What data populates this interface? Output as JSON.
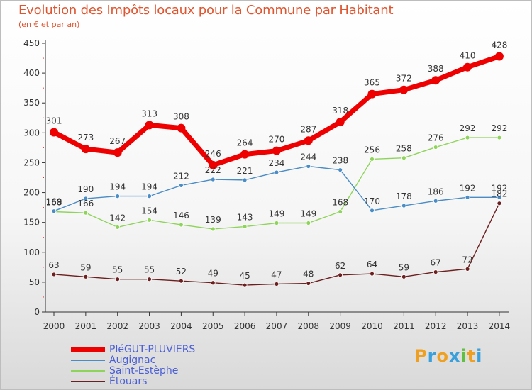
{
  "title": "Evolution des Impôts locaux pour la Commune par Habitant",
  "subtitle": "(en € et par an)",
  "logo": {
    "letters": [
      "P",
      "r",
      "o",
      "x",
      "i",
      "t",
      "i"
    ],
    "colors": [
      "#f0a020",
      "#3aa0dc",
      "#f0a020",
      "#3aa0dc",
      "#60c040",
      "#f0a020",
      "#3aa0dc"
    ]
  },
  "chart_data": {
    "type": "line",
    "title": "Evolution des Impôts locaux pour la Commune par Habitant",
    "subtitle": "(en € et par an)",
    "categories": [
      "2000",
      "2001",
      "2002",
      "2003",
      "2004",
      "2005",
      "2006",
      "2007",
      "2008",
      "2009",
      "2010",
      "2011",
      "2012",
      "2013",
      "2014"
    ],
    "ylim": [
      0,
      450
    ],
    "yticks": [
      0,
      50,
      100,
      150,
      200,
      250,
      300,
      350,
      400,
      450
    ],
    "grid": false,
    "legend_position": "bottom-left",
    "series": [
      {
        "name": "PléGUT-PLUVIERS",
        "color": "#ee0000",
        "values": [
          301,
          273,
          267,
          313,
          308,
          246,
          264,
          270,
          287,
          318,
          365,
          372,
          388,
          410,
          428
        ]
      },
      {
        "name": "Augignac",
        "color": "#4a8cc6",
        "values": [
          169,
          190,
          194,
          194,
          212,
          222,
          221,
          234,
          244,
          238,
          170,
          178,
          186,
          192,
          192
        ]
      },
      {
        "name": "Saint-Estèphe",
        "color": "#8fd45a",
        "values": [
          168,
          166,
          142,
          154,
          146,
          139,
          143,
          149,
          149,
          168,
          256,
          258,
          276,
          292,
          292
        ]
      },
      {
        "name": "Étouars",
        "color": "#6b1f1f",
        "values": [
          63,
          59,
          55,
          55,
          52,
          49,
          45,
          47,
          48,
          62,
          64,
          59,
          67,
          72,
          182
        ]
      }
    ]
  }
}
